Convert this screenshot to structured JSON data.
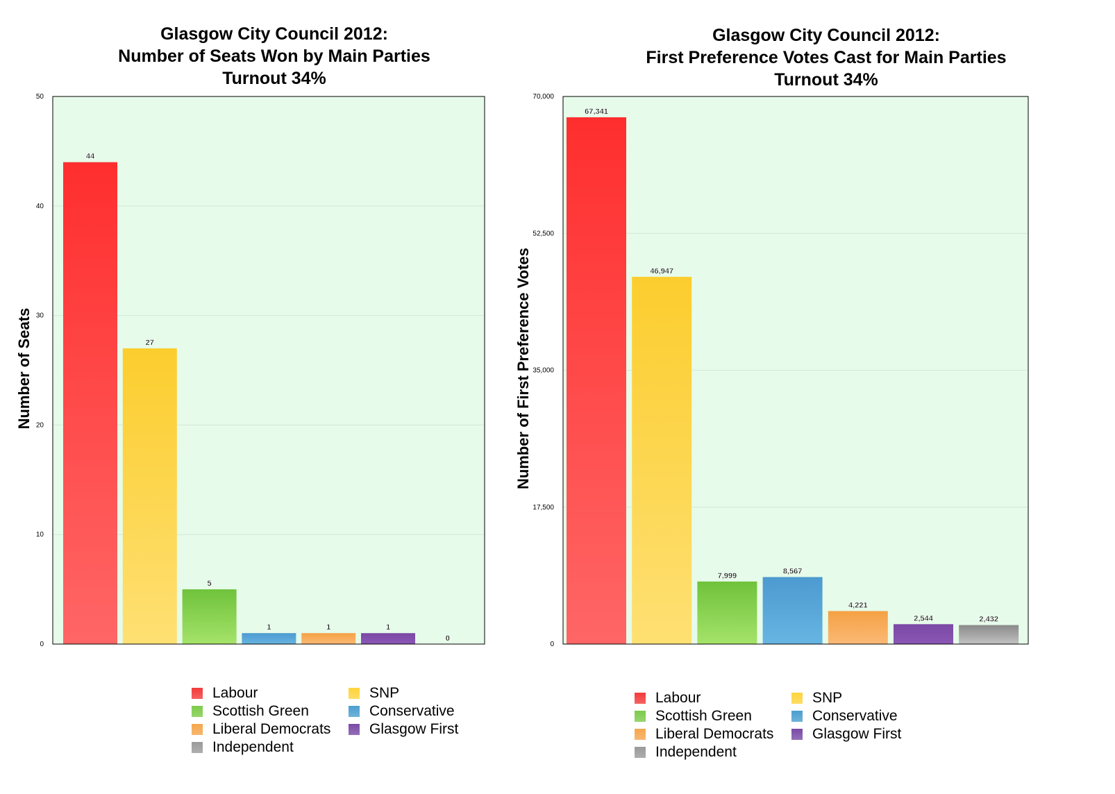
{
  "charts": [
    {
      "title_lines": [
        "Glasgow City Council 2012:",
        "Number of Seats Won by Main Parties",
        "Turnout 34%"
      ],
      "ylabel": "Number of Seats"
    },
    {
      "title_lines": [
        "Glasgow City Council 2012:",
        "First Preference Votes Cast for Main Parties",
        "Turnout 34%"
      ],
      "ylabel": "Number of First Preference Votes"
    }
  ],
  "legend": [
    {
      "label": "Labour",
      "color": "#f23b3b"
    },
    {
      "label": "SNP",
      "color": "#fdd43c"
    },
    {
      "label": "Scottish Green",
      "color": "#7ccb4a"
    },
    {
      "label": "Conservative",
      "color": "#4b9fd0"
    },
    {
      "label": "Liberal Democrats",
      "color": "#f5a64c"
    },
    {
      "label": "Glasgow First",
      "color": "#7a4aa6"
    },
    {
      "label": "Independent",
      "color": "#9a9a9a"
    }
  ],
  "chart_data": [
    {
      "type": "bar",
      "title": "Glasgow City Council 2012: Number of Seats Won by Main Parties Turnout 34%",
      "ylabel": "Number of Seats",
      "xlabel": "",
      "categories": [
        "Labour",
        "SNP",
        "Scottish Green",
        "Conservative",
        "Liberal Democrats",
        "Glasgow First",
        "Independent"
      ],
      "values": [
        44,
        27,
        5,
        1,
        1,
        1,
        0
      ],
      "value_labels": [
        "44",
        "27",
        "5",
        "1",
        "1",
        "1",
        "0"
      ],
      "ylim": [
        0,
        50
      ],
      "yticks": [
        0,
        10,
        20,
        30,
        40,
        50
      ],
      "ytick_labels": [
        "0",
        "10",
        "20",
        "30",
        "40",
        "50"
      ],
      "colors": [
        [
          "#ff2e2e",
          "#ff6666"
        ],
        [
          "#fccd2e",
          "#fee073"
        ],
        [
          "#6fc23b",
          "#a5e36a"
        ],
        [
          "#4c9ad0",
          "#67b5e2"
        ],
        [
          "#f5a144",
          "#fbb975"
        ],
        [
          "#7b48a6",
          "#8a57b5"
        ],
        [
          "#8a8a8a",
          "#c2c2c2"
        ]
      ],
      "background": "#e6fbe9",
      "grid": true,
      "legend_position": "bottom"
    },
    {
      "type": "bar",
      "title": "Glasgow City Council 2012: First Preference Votes Cast for Main Parties Turnout 34%",
      "ylabel": "Number of First Preference Votes",
      "xlabel": "",
      "categories": [
        "Labour",
        "SNP",
        "Scottish Green",
        "Conservative",
        "Liberal Democrats",
        "Glasgow First",
        "Independent"
      ],
      "values": [
        67341,
        46947,
        7999,
        8567,
        4221,
        2544,
        2432
      ],
      "value_labels": [
        "67,341",
        "46,947",
        "7,999",
        "8,567",
        "4,221",
        "2,544",
        "2,432"
      ],
      "ylim": [
        0,
        70000
      ],
      "yticks": [
        0,
        17500,
        35000,
        52500,
        70000
      ],
      "ytick_labels": [
        "0",
        "17,500",
        "35,000",
        "52,500",
        "70,000"
      ],
      "colors": [
        [
          "#ff2e2e",
          "#ff6666"
        ],
        [
          "#fccd2e",
          "#fee073"
        ],
        [
          "#6fc23b",
          "#a5e36a"
        ],
        [
          "#4c9ad0",
          "#67b5e2"
        ],
        [
          "#f5a144",
          "#fbb975"
        ],
        [
          "#7b48a6",
          "#8a57b5"
        ],
        [
          "#8a8a8a",
          "#c2c2c2"
        ]
      ],
      "background": "#e6fbe9",
      "grid": true,
      "legend_position": "bottom"
    }
  ]
}
